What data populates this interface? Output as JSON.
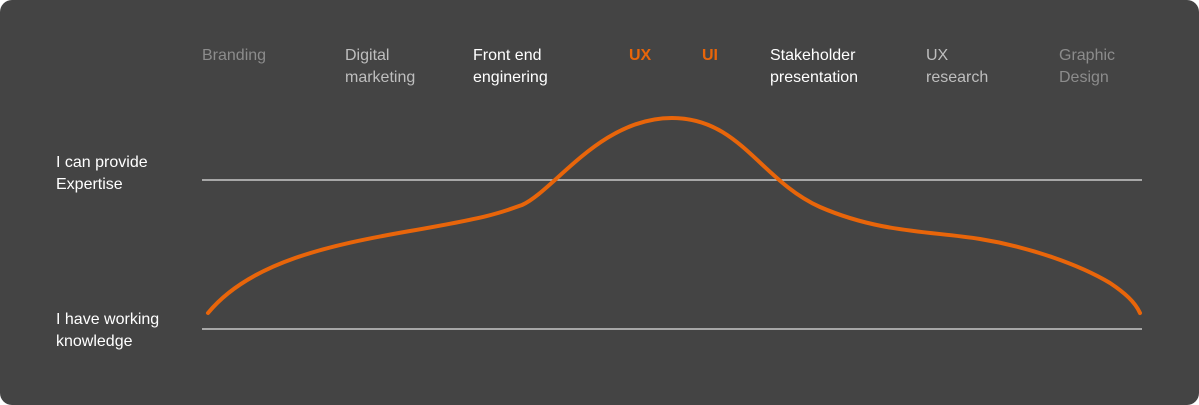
{
  "colors": {
    "background": "#444444",
    "accent": "#E8650A",
    "guide_line": "#C8C8C8",
    "label": "#FFFFFF"
  },
  "skills": [
    {
      "label": "Branding",
      "color": "#8C8C8C",
      "bold": false
    },
    {
      "label": "Digital\nmarketing",
      "color": "#BEBEBE",
      "bold": false
    },
    {
      "label": "Front end\nenginering",
      "color": "#FFFFFF",
      "bold": false
    },
    {
      "label": "UX",
      "color": "#E8650A",
      "bold": true
    },
    {
      "label": "UI",
      "color": "#E8650A",
      "bold": true
    },
    {
      "label": "Stakeholder\npresentation",
      "color": "#FFFFFF",
      "bold": false
    },
    {
      "label": "UX\nresearch",
      "color": "#BEBEBE",
      "bold": false
    },
    {
      "label": "Graphic\nDesign",
      "color": "#8C8C8C",
      "bold": false
    }
  ],
  "levels": {
    "expertise": "I can provide\nExpertise",
    "working": "I have working\nknowledge"
  }
}
